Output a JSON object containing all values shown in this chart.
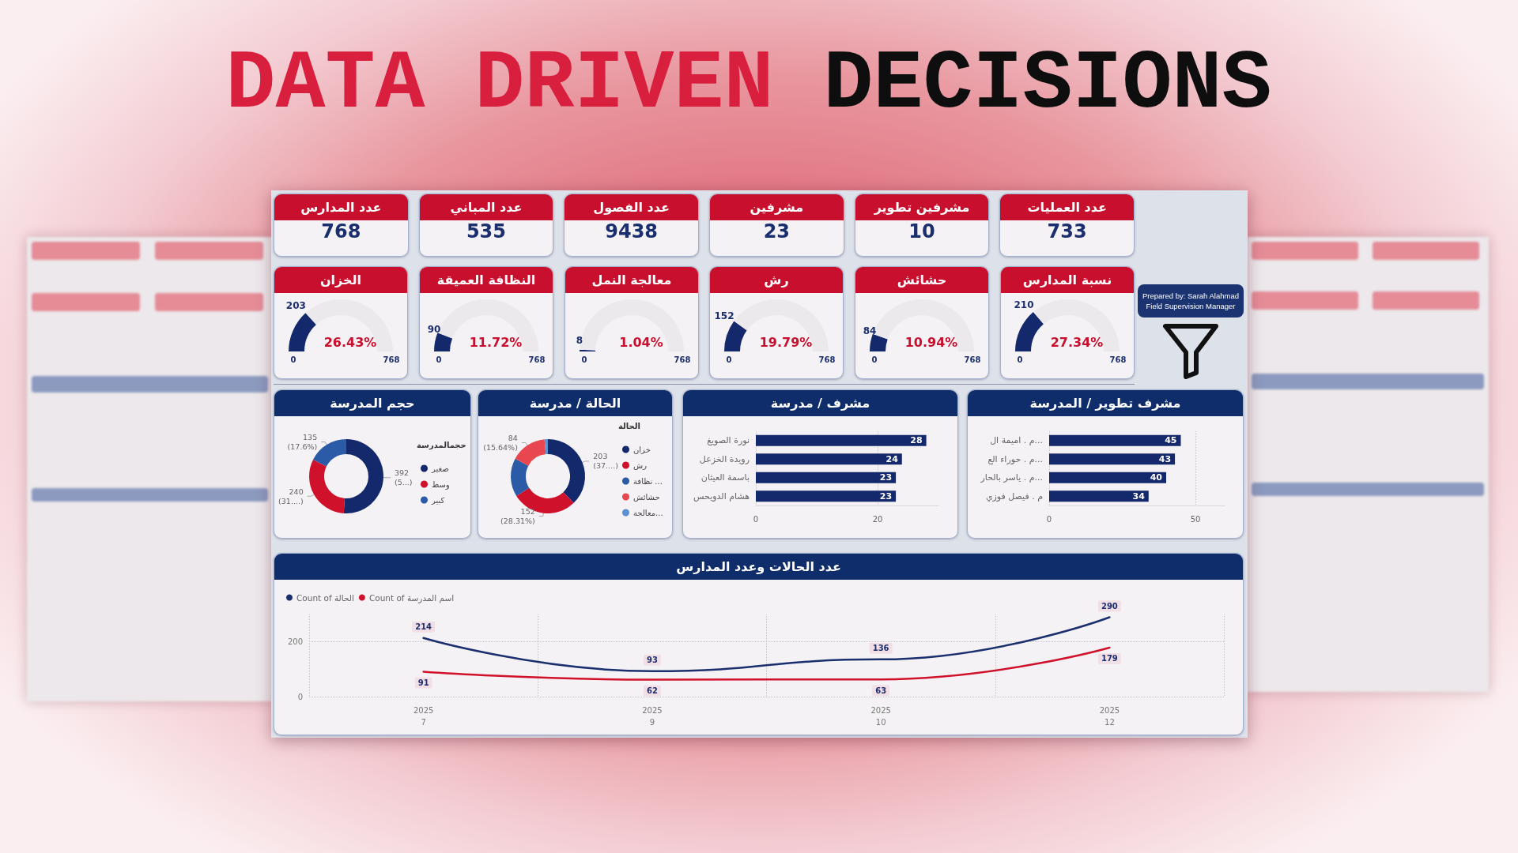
{
  "chart_data": [
    {
      "type": "other",
      "title": "DATA DRIVEN DECISIONS"
    },
    {
      "type": "other",
      "categories": [
        "عدد المدارس",
        "عدد المباني",
        "عدد الفصول",
        "مشرفين",
        "مشرفين تطوير",
        "عدد العمليات"
      ],
      "values": [
        768,
        535,
        9438,
        23,
        10,
        733
      ],
      "data_labels": true
    },
    {
      "type": "donut",
      "title": "الخزان",
      "categories": [
        null,
        null
      ],
      "values": [
        203,
        565
      ],
      "colors": [
        "#13296b",
        "#ece9ec"
      ],
      "value_labels": [
        "203",
        null
      ],
      "annotations": [
        "26.43%",
        "0",
        "768"
      ]
    },
    {
      "type": "donut",
      "title": "النظافة العميقة",
      "categories": [
        null,
        null
      ],
      "values": [
        90,
        678
      ],
      "colors": [
        "#13296b",
        "#ece9ec"
      ],
      "value_labels": [
        "90",
        null
      ],
      "annotations": [
        "11.72%",
        "0",
        "768"
      ]
    },
    {
      "type": "donut",
      "title": "معالجة النمل",
      "categories": [
        null,
        null
      ],
      "values": [
        8,
        760
      ],
      "colors": [
        "#13296b",
        "#ece9ec"
      ],
      "value_labels": [
        "8",
        null
      ],
      "annotations": [
        "1.04%",
        "0",
        "768"
      ]
    },
    {
      "type": "donut",
      "title": "رش",
      "categories": [
        null,
        null
      ],
      "values": [
        152,
        616
      ],
      "colors": [
        "#13296b",
        "#ece9ec"
      ],
      "value_labels": [
        "152",
        null
      ],
      "annotations": [
        "19.79%",
        "0",
        "768"
      ]
    },
    {
      "type": "donut",
      "title": "حشائش",
      "categories": [
        null,
        null
      ],
      "values": [
        84,
        684
      ],
      "colors": [
        "#13296b",
        "#ece9ec"
      ],
      "value_labels": [
        "84",
        null
      ],
      "annotations": [
        "10.94%",
        "0",
        "768"
      ]
    },
    {
      "type": "donut",
      "title": "نسبة المدارس",
      "categories": [
        null,
        null
      ],
      "values": [
        210,
        558
      ],
      "colors": [
        "#13296b",
        "#ece9ec"
      ],
      "value_labels": [
        "210",
        null
      ],
      "annotations": [
        "27.34%",
        "0",
        "768"
      ]
    },
    {
      "type": "other",
      "annotations": [
        "Prepared by: Sarah Alahmad",
        "Field Supervision Manager"
      ]
    },
    {
      "type": "donut",
      "title": "حجم المدرسة",
      "legend_title": "حجمالمدرسة",
      "categories": [
        "صغير",
        "وسط",
        "كبير"
      ],
      "values": [
        392,
        240,
        135
      ],
      "colors": [
        "#13296b",
        "#d0112b",
        "#2b5aa6"
      ],
      "value_labels": [
        "392 (5...)",
        "240 (31....)",
        "135 (17.6%)"
      ],
      "legend": "right"
    },
    {
      "type": "donut",
      "title": "الحالة / مدرسة",
      "legend_title": "الحالة",
      "categories": [
        "خزان",
        "رش",
        "نظافة ...",
        "حشائش",
        "معالجة..."
      ],
      "values": [
        203,
        152,
        90,
        84,
        8
      ],
      "colors": [
        "#13296b",
        "#d0112b",
        "#2b5aa6",
        "#e8474f",
        "#5d8fd3"
      ],
      "value_labels": [
        "203 (37....)",
        "152 (28.31%)",
        null,
        "84 (15.64%)",
        null
      ],
      "legend": "right"
    },
    {
      "type": "bar",
      "orientation": "horizontal",
      "title": "مشرف / مدرسة",
      "categories": [
        "نورة الصويغ",
        "رويدة الخزعل",
        "باسمة العيثان",
        "هشام الدويحس"
      ],
      "values": [
        28,
        24,
        23,
        23
      ],
      "color": "#13296b",
      "xlim": [
        0,
        30
      ],
      "xticks": [
        0,
        20
      ],
      "grid": "x",
      "data_labels": true
    },
    {
      "type": "bar",
      "orientation": "horizontal",
      "title": "مشرف تطوير / المدرسة",
      "categories": [
        "م . اميمة ال...",
        "م . حوراء الع...",
        "م . ياسر بالحار...",
        "م . فيصل فوزي"
      ],
      "values": [
        45,
        43,
        40,
        34
      ],
      "color": "#13296b",
      "xlim": [
        0,
        60
      ],
      "xticks": [
        0,
        50
      ],
      "grid": "x",
      "data_labels": true
    },
    {
      "type": "line",
      "title": "عدد الحالات وعدد المدارس",
      "categories": [
        "2025 7",
        "2025 9",
        "2025 10",
        "2025 12"
      ],
      "series": [
        {
          "name": "Count of الحالة",
          "color": "#1b2f6e",
          "values": [
            214,
            93,
            136,
            290
          ]
        },
        {
          "name": "Count of اسم المدرسة",
          "color": "#d0112b",
          "values": [
            91,
            62,
            63,
            179
          ]
        }
      ],
      "ylim": [
        0,
        300
      ],
      "yticks": [
        0,
        200
      ],
      "grid": true,
      "legend": "top left",
      "marker": "none",
      "data_labels": true
    }
  ]
}
